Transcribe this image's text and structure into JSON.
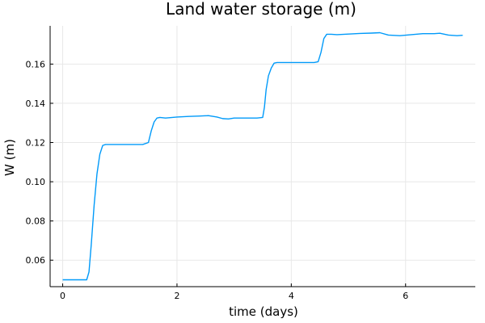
{
  "chart_data": {
    "type": "line",
    "title": "Land water storage (m)",
    "xlabel": "time (days)",
    "ylabel": "W (m)",
    "xlim": [
      -0.22,
      7.22
    ],
    "ylim": [
      0.0465,
      0.1795
    ],
    "xticks": [
      0,
      2,
      4,
      6
    ],
    "xtick_labels": [
      "0",
      "2",
      "4",
      "6"
    ],
    "yticks": [
      0.06,
      0.08,
      0.1,
      0.12,
      0.14,
      0.16
    ],
    "ytick_labels": [
      "0.06",
      "0.08",
      "0.10",
      "0.12",
      "0.14",
      "0.16"
    ],
    "grid": true,
    "legend": "none",
    "color": "#009af9",
    "series": [
      {
        "x": [
          0,
          0.2,
          0.42,
          0.46,
          0.5,
          0.55,
          0.6,
          0.65,
          0.7,
          0.75,
          0.8,
          1.0,
          1.2,
          1.4,
          1.5,
          1.55,
          1.6,
          1.65,
          1.7,
          1.8,
          2.0,
          2.2,
          2.4,
          2.55,
          2.7,
          2.8,
          2.9,
          3.0,
          3.2,
          3.4,
          3.5,
          3.53,
          3.56,
          3.6,
          3.65,
          3.7,
          3.75,
          3.8,
          4.0,
          4.2,
          4.4,
          4.47,
          4.52,
          4.57,
          4.62,
          4.7,
          4.8,
          5.0,
          5.2,
          5.4,
          5.55,
          5.7,
          5.9,
          6.1,
          6.3,
          6.5,
          6.6,
          6.75,
          6.9,
          7.0
        ],
        "y": [
          0.05,
          0.05,
          0.05,
          0.054,
          0.068,
          0.088,
          0.104,
          0.114,
          0.1185,
          0.119,
          0.119,
          0.119,
          0.119,
          0.119,
          0.12,
          0.126,
          0.1305,
          0.1325,
          0.1328,
          0.1325,
          0.133,
          0.1333,
          0.1335,
          0.1337,
          0.133,
          0.1322,
          0.132,
          0.1325,
          0.1325,
          0.1325,
          0.1328,
          0.138,
          0.147,
          0.154,
          0.158,
          0.1605,
          0.1608,
          0.1608,
          0.1608,
          0.1608,
          0.1608,
          0.1612,
          0.166,
          0.173,
          0.1752,
          0.1752,
          0.175,
          0.1753,
          0.1756,
          0.1758,
          0.176,
          0.1748,
          0.1745,
          0.175,
          0.1755,
          0.1755,
          0.1757,
          0.1748,
          0.1745,
          0.1747
        ]
      }
    ]
  }
}
